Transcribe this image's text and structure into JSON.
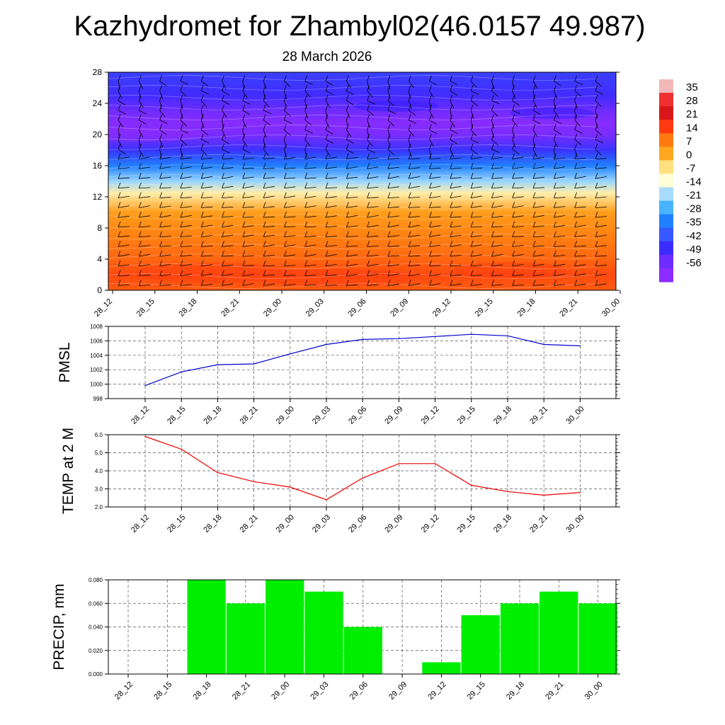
{
  "header": {
    "title": "Kazhydromet for Zhambyl02(46.0157 49.987)",
    "subtitle": "28 March 2026"
  },
  "chart_data": [
    {
      "type": "heatmap",
      "name": "vertical-cross-section",
      "title": "",
      "x_categories": [
        "28_12",
        "28_15",
        "28_18",
        "28_21",
        "29_00",
        "29_03",
        "29_06",
        "29_09",
        "29_12",
        "29_15",
        "29_18",
        "29_21",
        "30_00"
      ],
      "y_ticks": [
        0,
        4,
        8,
        12,
        16,
        20,
        24,
        28
      ],
      "ylim": [
        0,
        28
      ],
      "colorbar": {
        "labels": [
          "35",
          "28",
          "21",
          "14",
          "7",
          "0",
          "-7",
          "-14",
          "-21",
          "-28",
          "-35",
          "-42",
          "-49",
          "-56"
        ],
        "colors": [
          "#f2b8b8",
          "#ee3030",
          "#d81818",
          "#ff3a10",
          "#ff7a10",
          "#ffa820",
          "#ffe080",
          "#ffffd8",
          "#a8dcff",
          "#48b4ff",
          "#2080ff",
          "#3858ff",
          "#3a2cff",
          "#6e2cff",
          "#8c2cff"
        ]
      },
      "profile": {
        "heights": [
          0,
          2,
          4,
          7,
          10,
          12.5,
          14,
          16,
          18,
          20,
          21.5,
          23,
          25,
          28
        ],
        "values": [
          12,
          14,
          11,
          8,
          4,
          -7,
          -18,
          -30,
          -42,
          -52,
          -55,
          -50,
          -44,
          -40
        ]
      }
    },
    {
      "type": "line",
      "name": "pmsl",
      "ylabel": "PMSL",
      "categories": [
        "28_12",
        "28_15",
        "28_18",
        "28_21",
        "29_00",
        "29_03",
        "29_06",
        "29_09",
        "29_12",
        "29_15",
        "29_18",
        "29_21",
        "30_00"
      ],
      "values": [
        999.8,
        1001.7,
        1002.7,
        1002.8,
        1004.2,
        1005.5,
        1006.2,
        1006.3,
        1006.6,
        1006.9,
        1006.7,
        1005.5,
        1005.3
      ],
      "ylim": [
        998,
        1008
      ],
      "y_ticks": [
        "998",
        "1000",
        "1002",
        "1004",
        "1006",
        "1008"
      ],
      "color": "#0000cc"
    },
    {
      "type": "line",
      "name": "temp2m",
      "ylabel": "TEMP at 2 M",
      "categories": [
        "28_12",
        "28_15",
        "28_18",
        "28_21",
        "29_00",
        "29_03",
        "29_06",
        "29_09",
        "29_12",
        "29_15",
        "29_18",
        "29_21",
        "30_00"
      ],
      "values": [
        5.9,
        5.2,
        3.9,
        3.4,
        3.1,
        2.4,
        3.6,
        4.4,
        4.4,
        3.2,
        2.85,
        2.65,
        2.8
      ],
      "ylim": [
        2.0,
        6.0
      ],
      "y_ticks": [
        "2.0",
        "3.0",
        "4.0",
        "5.0",
        "6.0"
      ],
      "color": "#ee0000"
    },
    {
      "type": "bar",
      "name": "precip",
      "ylabel": "PRECIP, mm",
      "categories": [
        "28_12",
        "28_15",
        "28_18",
        "28_21",
        "29_00",
        "29_03",
        "29_06",
        "29_09",
        "29_12",
        "29_15",
        "29_18",
        "29_21",
        "30_00"
      ],
      "values": [
        0,
        0,
        0.08,
        0.06,
        0.08,
        0.07,
        0.04,
        0,
        0.01,
        0.05,
        0.06,
        0.07,
        0.06
      ],
      "ylim": [
        0,
        0.08
      ],
      "y_ticks": [
        "0.000",
        "0.020",
        "0.040",
        "0.060",
        "0.080"
      ],
      "color": "#00ee00"
    }
  ]
}
